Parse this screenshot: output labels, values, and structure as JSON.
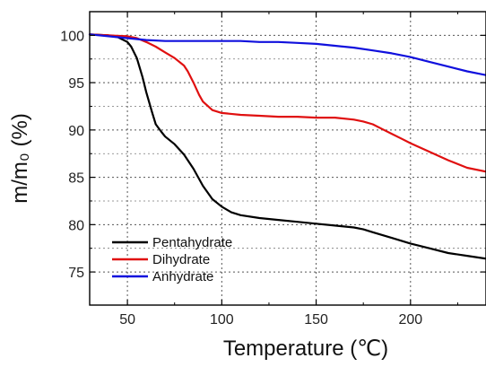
{
  "chart_data": {
    "type": "line",
    "xlabel": "Temperature (℃)",
    "ylabel": "m/m₀ (%)",
    "xlim": [
      30,
      240
    ],
    "ylim": [
      71.5,
      102.5
    ],
    "x_ticks": [
      50,
      100,
      150,
      200
    ],
    "y_ticks": [
      75,
      80,
      85,
      90,
      95,
      100
    ],
    "grid": true,
    "legend_position": "bottom-left",
    "series": [
      {
        "name": "Pentahydrate",
        "color": "#000000",
        "x": [
          30,
          40,
          45,
          50,
          52,
          55,
          58,
          60,
          63,
          65,
          68,
          70,
          75,
          80,
          85,
          90,
          95,
          100,
          105,
          110,
          120,
          130,
          140,
          150,
          160,
          170,
          175,
          180,
          190,
          200,
          210,
          220,
          230,
          240
        ],
        "y": [
          100.1,
          100.0,
          99.8,
          99.3,
          98.8,
          97.6,
          95.6,
          94.0,
          91.9,
          90.6,
          89.8,
          89.3,
          88.5,
          87.4,
          85.9,
          84.1,
          82.7,
          81.9,
          81.3,
          81.0,
          80.7,
          80.5,
          80.3,
          80.1,
          79.9,
          79.7,
          79.5,
          79.2,
          78.6,
          78.0,
          77.5,
          77.0,
          76.7,
          76.4
        ]
      },
      {
        "name": "Dihydrate",
        "color": "#e01010",
        "x": [
          30,
          40,
          50,
          55,
          60,
          65,
          70,
          75,
          80,
          82,
          85,
          88,
          90,
          95,
          100,
          110,
          120,
          130,
          140,
          150,
          160,
          170,
          175,
          180,
          185,
          190,
          195,
          200,
          210,
          220,
          230,
          240
        ],
        "y": [
          100.1,
          100.0,
          99.9,
          99.7,
          99.3,
          98.8,
          98.2,
          97.6,
          96.8,
          96.2,
          95.0,
          93.7,
          93.0,
          92.1,
          91.8,
          91.6,
          91.5,
          91.4,
          91.4,
          91.3,
          91.3,
          91.1,
          90.9,
          90.6,
          90.1,
          89.6,
          89.1,
          88.6,
          87.7,
          86.8,
          86.0,
          85.6
        ]
      },
      {
        "name": "Anhydrate",
        "color": "#1010dd",
        "x": [
          30,
          40,
          50,
          60,
          70,
          80,
          90,
          100,
          110,
          120,
          130,
          140,
          150,
          160,
          170,
          180,
          190,
          200,
          210,
          220,
          230,
          240
        ],
        "y": [
          100.1,
          99.9,
          99.7,
          99.5,
          99.4,
          99.4,
          99.4,
          99.4,
          99.4,
          99.3,
          99.3,
          99.2,
          99.1,
          98.9,
          98.7,
          98.4,
          98.1,
          97.7,
          97.2,
          96.7,
          96.2,
          95.8
        ]
      }
    ]
  }
}
